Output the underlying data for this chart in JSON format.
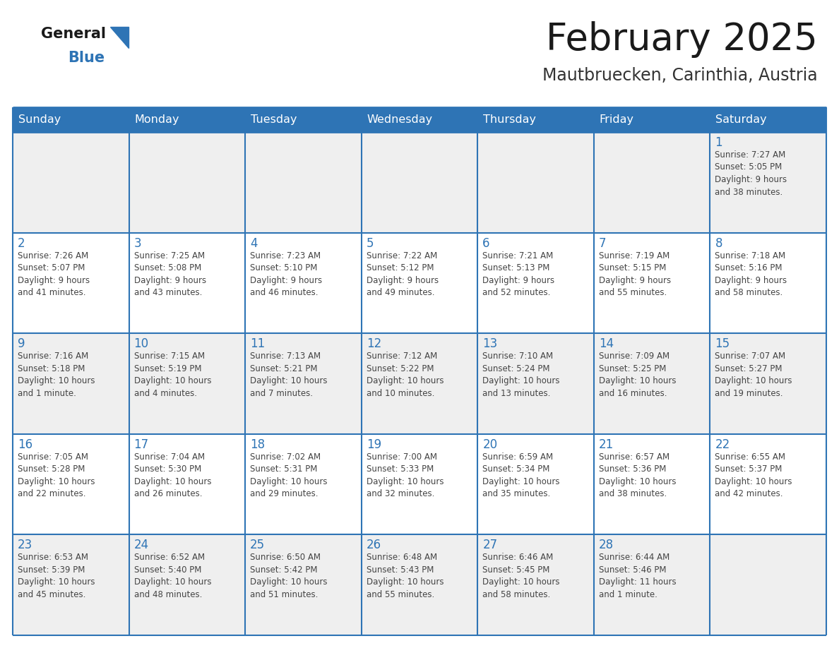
{
  "title": "February 2025",
  "subtitle": "Mautbruecken, Carinthia, Austria",
  "header_bg": "#2E74B5",
  "header_text_color": "#FFFFFF",
  "day_names": [
    "Sunday",
    "Monday",
    "Tuesday",
    "Wednesday",
    "Thursday",
    "Friday",
    "Saturday"
  ],
  "row_bg": [
    "#EFEFEF",
    "#FFFFFF",
    "#EFEFEF",
    "#FFFFFF",
    "#EFEFEF"
  ],
  "cell_text_color": "#444444",
  "day_num_color": "#2E74B5",
  "border_color": "#2E74B5",
  "calendar": [
    [
      null,
      null,
      null,
      null,
      null,
      null,
      {
        "day": "1",
        "sunrise": "7:27 AM",
        "sunset": "5:05 PM",
        "daylight": "9 hours\nand 38 minutes."
      }
    ],
    [
      {
        "day": "2",
        "sunrise": "7:26 AM",
        "sunset": "5:07 PM",
        "daylight": "9 hours\nand 41 minutes."
      },
      {
        "day": "3",
        "sunrise": "7:25 AM",
        "sunset": "5:08 PM",
        "daylight": "9 hours\nand 43 minutes."
      },
      {
        "day": "4",
        "sunrise": "7:23 AM",
        "sunset": "5:10 PM",
        "daylight": "9 hours\nand 46 minutes."
      },
      {
        "day": "5",
        "sunrise": "7:22 AM",
        "sunset": "5:12 PM",
        "daylight": "9 hours\nand 49 minutes."
      },
      {
        "day": "6",
        "sunrise": "7:21 AM",
        "sunset": "5:13 PM",
        "daylight": "9 hours\nand 52 minutes."
      },
      {
        "day": "7",
        "sunrise": "7:19 AM",
        "sunset": "5:15 PM",
        "daylight": "9 hours\nand 55 minutes."
      },
      {
        "day": "8",
        "sunrise": "7:18 AM",
        "sunset": "5:16 PM",
        "daylight": "9 hours\nand 58 minutes."
      }
    ],
    [
      {
        "day": "9",
        "sunrise": "7:16 AM",
        "sunset": "5:18 PM",
        "daylight": "10 hours\nand 1 minute."
      },
      {
        "day": "10",
        "sunrise": "7:15 AM",
        "sunset": "5:19 PM",
        "daylight": "10 hours\nand 4 minutes."
      },
      {
        "day": "11",
        "sunrise": "7:13 AM",
        "sunset": "5:21 PM",
        "daylight": "10 hours\nand 7 minutes."
      },
      {
        "day": "12",
        "sunrise": "7:12 AM",
        "sunset": "5:22 PM",
        "daylight": "10 hours\nand 10 minutes."
      },
      {
        "day": "13",
        "sunrise": "7:10 AM",
        "sunset": "5:24 PM",
        "daylight": "10 hours\nand 13 minutes."
      },
      {
        "day": "14",
        "sunrise": "7:09 AM",
        "sunset": "5:25 PM",
        "daylight": "10 hours\nand 16 minutes."
      },
      {
        "day": "15",
        "sunrise": "7:07 AM",
        "sunset": "5:27 PM",
        "daylight": "10 hours\nand 19 minutes."
      }
    ],
    [
      {
        "day": "16",
        "sunrise": "7:05 AM",
        "sunset": "5:28 PM",
        "daylight": "10 hours\nand 22 minutes."
      },
      {
        "day": "17",
        "sunrise": "7:04 AM",
        "sunset": "5:30 PM",
        "daylight": "10 hours\nand 26 minutes."
      },
      {
        "day": "18",
        "sunrise": "7:02 AM",
        "sunset": "5:31 PM",
        "daylight": "10 hours\nand 29 minutes."
      },
      {
        "day": "19",
        "sunrise": "7:00 AM",
        "sunset": "5:33 PM",
        "daylight": "10 hours\nand 32 minutes."
      },
      {
        "day": "20",
        "sunrise": "6:59 AM",
        "sunset": "5:34 PM",
        "daylight": "10 hours\nand 35 minutes."
      },
      {
        "day": "21",
        "sunrise": "6:57 AM",
        "sunset": "5:36 PM",
        "daylight": "10 hours\nand 38 minutes."
      },
      {
        "day": "22",
        "sunrise": "6:55 AM",
        "sunset": "5:37 PM",
        "daylight": "10 hours\nand 42 minutes."
      }
    ],
    [
      {
        "day": "23",
        "sunrise": "6:53 AM",
        "sunset": "5:39 PM",
        "daylight": "10 hours\nand 45 minutes."
      },
      {
        "day": "24",
        "sunrise": "6:52 AM",
        "sunset": "5:40 PM",
        "daylight": "10 hours\nand 48 minutes."
      },
      {
        "day": "25",
        "sunrise": "6:50 AM",
        "sunset": "5:42 PM",
        "daylight": "10 hours\nand 51 minutes."
      },
      {
        "day": "26",
        "sunrise": "6:48 AM",
        "sunset": "5:43 PM",
        "daylight": "10 hours\nand 55 minutes."
      },
      {
        "day": "27",
        "sunrise": "6:46 AM",
        "sunset": "5:45 PM",
        "daylight": "10 hours\nand 58 minutes."
      },
      {
        "day": "28",
        "sunrise": "6:44 AM",
        "sunset": "5:46 PM",
        "daylight": "11 hours\nand 1 minute."
      },
      null
    ]
  ],
  "logo_general_color": "#1a1a1a",
  "logo_blue_color": "#2E74B5",
  "fig_width": 11.88,
  "fig_height": 9.18
}
